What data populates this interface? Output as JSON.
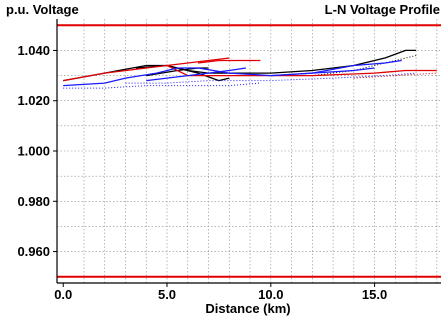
{
  "chart_data": {
    "type": "line",
    "title": "L-N Voltage Profile",
    "ylabel": "p.u. Voltage",
    "xlabel": "Distance (km)",
    "xlim": [
      -0.3,
      18.2
    ],
    "ylim": [
      0.9475,
      1.0525
    ],
    "x_ticks": [
      0,
      5,
      10,
      15
    ],
    "x_tick_labels": [
      "0.0",
      "5.0",
      "10.0",
      "15.0"
    ],
    "y_ticks": [
      0.96,
      0.98,
      1.0,
      1.02,
      1.04
    ],
    "y_tick_labels": [
      "0.960",
      "0.980",
      "1.000",
      "1.020",
      "1.040"
    ],
    "grid": true,
    "limit_lines": {
      "values": [
        1.05,
        0.95
      ],
      "color": "#e00000"
    },
    "series": [
      {
        "color": "#000000",
        "style": "solid",
        "points": [
          [
            0,
            1.028
          ],
          [
            2,
            1.031
          ],
          [
            4,
            1.034
          ],
          [
            5,
            1.034
          ],
          [
            6,
            1.032
          ],
          [
            7,
            1.031
          ],
          [
            8,
            1.031
          ],
          [
            10,
            1.031
          ],
          [
            12,
            1.032
          ],
          [
            14,
            1.034
          ],
          [
            15.5,
            1.037
          ],
          [
            16.5,
            1.04
          ],
          [
            17,
            1.04
          ]
        ]
      },
      {
        "color": "#000000",
        "style": "solid",
        "points": [
          [
            3.5,
            1.033
          ],
          [
            5,
            1.034
          ],
          [
            6.5,
            1.031
          ],
          [
            7.5,
            1.028
          ],
          [
            8,
            1.029
          ]
        ]
      },
      {
        "color": "#000000",
        "style": "solid",
        "points": [
          [
            4,
            1.03
          ],
          [
            5.5,
            1.032
          ],
          [
            6.5,
            1.033
          ],
          [
            7,
            1.033
          ]
        ]
      },
      {
        "color": "#000000",
        "style": "dotted",
        "points": [
          [
            12,
            1.03
          ],
          [
            14,
            1.032
          ],
          [
            15.5,
            1.035
          ],
          [
            17,
            1.038
          ]
        ]
      },
      {
        "color": "#e00000",
        "style": "solid",
        "points": [
          [
            0,
            1.028
          ],
          [
            2,
            1.031
          ],
          [
            4,
            1.033
          ],
          [
            5,
            1.034
          ],
          [
            6,
            1.035
          ],
          [
            7,
            1.036
          ],
          [
            8,
            1.037
          ]
        ]
      },
      {
        "color": "#e00000",
        "style": "solid",
        "points": [
          [
            6.5,
            1.035
          ],
          [
            7.5,
            1.036
          ],
          [
            8.5,
            1.036
          ],
          [
            9.5,
            1.036
          ]
        ]
      },
      {
        "color": "#e00000",
        "style": "solid",
        "points": [
          [
            5,
            1.034
          ],
          [
            6,
            1.03
          ],
          [
            7,
            1.03
          ],
          [
            10,
            1.03
          ],
          [
            12,
            1.03
          ],
          [
            15,
            1.031
          ],
          [
            16.5,
            1.032
          ],
          [
            18,
            1.032
          ]
        ]
      },
      {
        "color": "#e00000",
        "style": "dotted",
        "points": [
          [
            14,
            1.029
          ],
          [
            16,
            1.03
          ],
          [
            18,
            1.031
          ]
        ]
      },
      {
        "color": "#1a1aff",
        "style": "solid",
        "points": [
          [
            0,
            1.026
          ],
          [
            2,
            1.027
          ],
          [
            3,
            1.029
          ],
          [
            4.5,
            1.031
          ],
          [
            5.5,
            1.033
          ],
          [
            6.5,
            1.033
          ],
          [
            8,
            1.031
          ],
          [
            10,
            1.03
          ],
          [
            12,
            1.031
          ],
          [
            14,
            1.034
          ],
          [
            15.5,
            1.035
          ],
          [
            16.3,
            1.036
          ]
        ]
      },
      {
        "color": "#1a1aff",
        "style": "solid",
        "points": [
          [
            4,
            1.028
          ],
          [
            5,
            1.029
          ],
          [
            6,
            1.03
          ],
          [
            7,
            1.031
          ],
          [
            8,
            1.032
          ],
          [
            8.8,
            1.033
          ]
        ]
      },
      {
        "color": "#1a1aff",
        "style": "solid",
        "points": [
          [
            10,
            1.03
          ],
          [
            12,
            1.031
          ],
          [
            14,
            1.032
          ],
          [
            15,
            1.033
          ]
        ]
      },
      {
        "color": "#1a1aff",
        "style": "dotted",
        "points": [
          [
            0,
            1.025
          ],
          [
            2,
            1.025
          ],
          [
            4,
            1.026
          ],
          [
            6,
            1.026
          ],
          [
            8,
            1.026
          ],
          [
            9.5,
            1.027
          ]
        ]
      },
      {
        "color": "#1a1aff",
        "style": "dotted",
        "points": [
          [
            3,
            1.027
          ],
          [
            5,
            1.027
          ],
          [
            7,
            1.028
          ],
          [
            10,
            1.028
          ],
          [
            13,
            1.029
          ],
          [
            15.5,
            1.03
          ],
          [
            17,
            1.031
          ]
        ]
      }
    ]
  }
}
